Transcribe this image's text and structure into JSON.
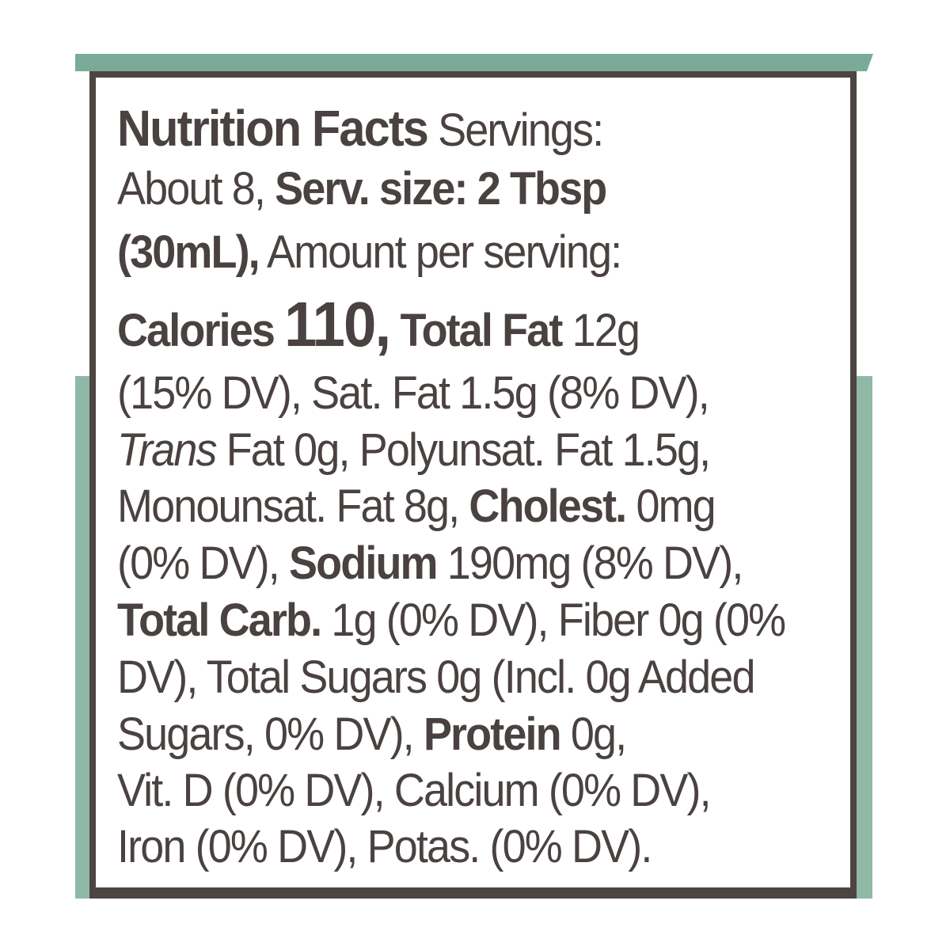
{
  "label": {
    "lines": [
      [
        "Nutrition Facts",
        " Servings:"
      ],
      [
        "About 8, ",
        "Serv. size: 2 Tbsp"
      ],
      [
        "(30mL),",
        " Amount per serving:"
      ],
      [
        "Calories ",
        "110,",
        " Total Fat",
        " 12g"
      ],
      [
        "(15% DV), Sat. Fat 1.5g (8% DV),"
      ],
      [
        "Trans",
        " Fat 0g, Polyunsat. Fat 1.5g,"
      ],
      [
        "Monounsat. Fat 8g, ",
        "Cholest.",
        " 0mg"
      ],
      [
        "(0% DV), ",
        "Sodium",
        " 190mg (8% DV),"
      ],
      [
        "Total Carb.",
        " 1g (0% DV), Fiber 0g (0%"
      ],
      [
        "DV), Total Sugars 0g (Incl. 0g Added"
      ],
      [
        "Sugars, 0% DV), ",
        "Protein",
        " 0g,"
      ],
      [
        "Vit. D (0% DV), Calcium (0% DV),"
      ],
      [
        "Iron (0% DV), Potas. (0% DV)."
      ]
    ]
  }
}
